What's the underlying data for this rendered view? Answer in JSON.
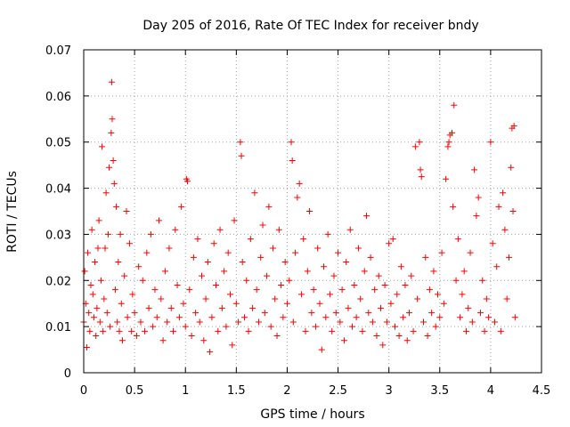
{
  "chart_data": {
    "type": "scatter",
    "title": "Day 205 of 2016, Rate Of TEC Index for receiver bndy",
    "xlabel": "GPS time / hours",
    "ylabel": "ROTI / TECUs",
    "xlim": [
      0,
      4.5
    ],
    "ylim": [
      0,
      0.07
    ],
    "xticks": [
      0,
      0.5,
      1,
      1.5,
      2,
      2.5,
      3,
      3.5,
      4,
      4.5
    ],
    "xtick_labels": [
      "0",
      "0.5",
      "1",
      "1.5",
      "2",
      "2.5",
      "3",
      "3.5",
      "4",
      "4.5"
    ],
    "yticks": [
      0,
      0.01,
      0.02,
      0.03,
      0.04,
      0.05,
      0.06,
      0.07
    ],
    "ytick_labels": [
      "0",
      "0.01",
      "0.02",
      "0.03",
      "0.04",
      "0.05",
      "0.06",
      "0.07"
    ],
    "grid": true,
    "marker": "+",
    "marker_color": "#ff0000",
    "series": [
      {
        "name": "ROTI",
        "points": [
          [
            0.0,
            0.011
          ],
          [
            0.01,
            0.022
          ],
          [
            0.02,
            0.015
          ],
          [
            0.03,
            0.0055
          ],
          [
            0.04,
            0.026
          ],
          [
            0.05,
            0.013
          ],
          [
            0.06,
            0.009
          ],
          [
            0.07,
            0.019
          ],
          [
            0.08,
            0.031
          ],
          [
            0.09,
            0.017
          ],
          [
            0.1,
            0.012
          ],
          [
            0.11,
            0.024
          ],
          [
            0.12,
            0.008
          ],
          [
            0.13,
            0.014
          ],
          [
            0.14,
            0.027
          ],
          [
            0.15,
            0.033
          ],
          [
            0.16,
            0.011
          ],
          [
            0.17,
            0.02
          ],
          [
            0.18,
            0.049
          ],
          [
            0.19,
            0.009
          ],
          [
            0.2,
            0.016
          ],
          [
            0.21,
            0.027
          ],
          [
            0.22,
            0.039
          ],
          [
            0.23,
            0.013
          ],
          [
            0.24,
            0.03
          ],
          [
            0.25,
            0.0445
          ],
          [
            0.26,
            0.01
          ],
          [
            0.27,
            0.052
          ],
          [
            0.275,
            0.063
          ],
          [
            0.28,
            0.055
          ],
          [
            0.29,
            0.046
          ],
          [
            0.3,
            0.041
          ],
          [
            0.31,
            0.018
          ],
          [
            0.32,
            0.036
          ],
          [
            0.33,
            0.011
          ],
          [
            0.34,
            0.024
          ],
          [
            0.35,
            0.009
          ],
          [
            0.36,
            0.03
          ],
          [
            0.37,
            0.015
          ],
          [
            0.38,
            0.007
          ],
          [
            0.4,
            0.021
          ],
          [
            0.42,
            0.035
          ],
          [
            0.43,
            0.012
          ],
          [
            0.45,
            0.028
          ],
          [
            0.47,
            0.009
          ],
          [
            0.48,
            0.017
          ],
          [
            0.5,
            0.013
          ],
          [
            0.52,
            0.008
          ],
          [
            0.54,
            0.023
          ],
          [
            0.56,
            0.011
          ],
          [
            0.58,
            0.02
          ],
          [
            0.6,
            0.009
          ],
          [
            0.62,
            0.026
          ],
          [
            0.64,
            0.014
          ],
          [
            0.66,
            0.03
          ],
          [
            0.68,
            0.01
          ],
          [
            0.7,
            0.018
          ],
          [
            0.72,
            0.012
          ],
          [
            0.74,
            0.033
          ],
          [
            0.76,
            0.016
          ],
          [
            0.78,
            0.007
          ],
          [
            0.8,
            0.022
          ],
          [
            0.82,
            0.011
          ],
          [
            0.84,
            0.027
          ],
          [
            0.86,
            0.014
          ],
          [
            0.88,
            0.009
          ],
          [
            0.9,
            0.031
          ],
          [
            0.92,
            0.019
          ],
          [
            0.94,
            0.012
          ],
          [
            0.96,
            0.036
          ],
          [
            0.98,
            0.015
          ],
          [
            1.0,
            0.01
          ],
          [
            1.01,
            0.042
          ],
          [
            1.02,
            0.0415
          ],
          [
            1.04,
            0.018
          ],
          [
            1.06,
            0.008
          ],
          [
            1.08,
            0.025
          ],
          [
            1.1,
            0.013
          ],
          [
            1.12,
            0.029
          ],
          [
            1.14,
            0.011
          ],
          [
            1.16,
            0.021
          ],
          [
            1.18,
            0.007
          ],
          [
            1.2,
            0.016
          ],
          [
            1.22,
            0.024
          ],
          [
            1.24,
            0.0045
          ],
          [
            1.26,
            0.012
          ],
          [
            1.28,
            0.028
          ],
          [
            1.3,
            0.019
          ],
          [
            1.32,
            0.009
          ],
          [
            1.34,
            0.031
          ],
          [
            1.36,
            0.014
          ],
          [
            1.38,
            0.022
          ],
          [
            1.4,
            0.01
          ],
          [
            1.42,
            0.026
          ],
          [
            1.44,
            0.017
          ],
          [
            1.46,
            0.006
          ],
          [
            1.48,
            0.033
          ],
          [
            1.5,
            0.015
          ],
          [
            1.52,
            0.011
          ],
          [
            1.54,
            0.05
          ],
          [
            1.55,
            0.047
          ],
          [
            1.56,
            0.024
          ],
          [
            1.58,
            0.012
          ],
          [
            1.6,
            0.02
          ],
          [
            1.62,
            0.009
          ],
          [
            1.64,
            0.029
          ],
          [
            1.66,
            0.014
          ],
          [
            1.68,
            0.039
          ],
          [
            1.7,
            0.018
          ],
          [
            1.72,
            0.011
          ],
          [
            1.74,
            0.025
          ],
          [
            1.76,
            0.032
          ],
          [
            1.78,
            0.013
          ],
          [
            1.8,
            0.021
          ],
          [
            1.82,
            0.036
          ],
          [
            1.84,
            0.01
          ],
          [
            1.86,
            0.027
          ],
          [
            1.88,
            0.016
          ],
          [
            1.9,
            0.008
          ],
          [
            1.92,
            0.031
          ],
          [
            1.94,
            0.019
          ],
          [
            1.96,
            0.012
          ],
          [
            1.98,
            0.024
          ],
          [
            2.0,
            0.015
          ],
          [
            2.02,
            0.02
          ],
          [
            2.04,
            0.05
          ],
          [
            2.05,
            0.046
          ],
          [
            2.06,
            0.011
          ],
          [
            2.08,
            0.026
          ],
          [
            2.1,
            0.038
          ],
          [
            2.12,
            0.041
          ],
          [
            2.14,
            0.017
          ],
          [
            2.16,
            0.029
          ],
          [
            2.18,
            0.009
          ],
          [
            2.2,
            0.022
          ],
          [
            2.22,
            0.035
          ],
          [
            2.24,
            0.013
          ],
          [
            2.26,
            0.018
          ],
          [
            2.28,
            0.01
          ],
          [
            2.3,
            0.027
          ],
          [
            2.32,
            0.015
          ],
          [
            2.34,
            0.005
          ],
          [
            2.36,
            0.023
          ],
          [
            2.38,
            0.012
          ],
          [
            2.4,
            0.03
          ],
          [
            2.42,
            0.017
          ],
          [
            2.44,
            0.009
          ],
          [
            2.46,
            0.021
          ],
          [
            2.48,
            0.013
          ],
          [
            2.5,
            0.026
          ],
          [
            2.52,
            0.011
          ],
          [
            2.54,
            0.018
          ],
          [
            2.56,
            0.007
          ],
          [
            2.58,
            0.024
          ],
          [
            2.6,
            0.014
          ],
          [
            2.62,
            0.031
          ],
          [
            2.64,
            0.01
          ],
          [
            2.66,
            0.019
          ],
          [
            2.68,
            0.012
          ],
          [
            2.7,
            0.027
          ],
          [
            2.72,
            0.016
          ],
          [
            2.74,
            0.009
          ],
          [
            2.76,
            0.022
          ],
          [
            2.78,
            0.034
          ],
          [
            2.8,
            0.013
          ],
          [
            2.82,
            0.025
          ],
          [
            2.84,
            0.011
          ],
          [
            2.86,
            0.018
          ],
          [
            2.88,
            0.008
          ],
          [
            2.9,
            0.021
          ],
          [
            2.92,
            0.014
          ],
          [
            2.94,
            0.006
          ],
          [
            2.96,
            0.019
          ],
          [
            2.98,
            0.011
          ],
          [
            3.0,
            0.028
          ],
          [
            3.02,
            0.015
          ],
          [
            3.04,
            0.029
          ],
          [
            3.06,
            0.01
          ],
          [
            3.08,
            0.017
          ],
          [
            3.1,
            0.008
          ],
          [
            3.12,
            0.023
          ],
          [
            3.14,
            0.012
          ],
          [
            3.16,
            0.019
          ],
          [
            3.18,
            0.007
          ],
          [
            3.2,
            0.013
          ],
          [
            3.22,
            0.021
          ],
          [
            3.24,
            0.009
          ],
          [
            3.26,
            0.049
          ],
          [
            3.28,
            0.016
          ],
          [
            3.3,
            0.05
          ],
          [
            3.31,
            0.044
          ],
          [
            3.32,
            0.0425
          ],
          [
            3.34,
            0.011
          ],
          [
            3.36,
            0.025
          ],
          [
            3.38,
            0.008
          ],
          [
            3.4,
            0.018
          ],
          [
            3.42,
            0.013
          ],
          [
            3.44,
            0.022
          ],
          [
            3.46,
            0.01
          ],
          [
            3.48,
            0.017
          ],
          [
            3.5,
            0.012
          ],
          [
            3.52,
            0.026
          ],
          [
            3.54,
            0.015
          ],
          [
            3.56,
            0.042
          ],
          [
            3.58,
            0.049
          ],
          [
            3.59,
            0.05
          ],
          [
            3.6,
            0.0515
          ],
          [
            3.62,
            0.052
          ],
          [
            3.63,
            0.036
          ],
          [
            3.64,
            0.058
          ],
          [
            3.66,
            0.02
          ],
          [
            3.68,
            0.029
          ],
          [
            3.7,
            0.012
          ],
          [
            3.72,
            0.017
          ],
          [
            3.74,
            0.022
          ],
          [
            3.76,
            0.009
          ],
          [
            3.78,
            0.014
          ],
          [
            3.8,
            0.026
          ],
          [
            3.82,
            0.011
          ],
          [
            3.84,
            0.044
          ],
          [
            3.86,
            0.034
          ],
          [
            3.88,
            0.038
          ],
          [
            3.9,
            0.013
          ],
          [
            3.92,
            0.02
          ],
          [
            3.94,
            0.009
          ],
          [
            3.96,
            0.016
          ],
          [
            3.98,
            0.012
          ],
          [
            4.0,
            0.05
          ],
          [
            4.02,
            0.028
          ],
          [
            4.04,
            0.011
          ],
          [
            4.06,
            0.023
          ],
          [
            4.08,
            0.036
          ],
          [
            4.1,
            0.009
          ],
          [
            4.12,
            0.039
          ],
          [
            4.14,
            0.031
          ],
          [
            4.16,
            0.016
          ],
          [
            4.18,
            0.025
          ],
          [
            4.2,
            0.0445
          ],
          [
            4.21,
            0.053
          ],
          [
            4.22,
            0.035
          ],
          [
            4.23,
            0.0535
          ],
          [
            4.24,
            0.012
          ]
        ]
      }
    ]
  }
}
